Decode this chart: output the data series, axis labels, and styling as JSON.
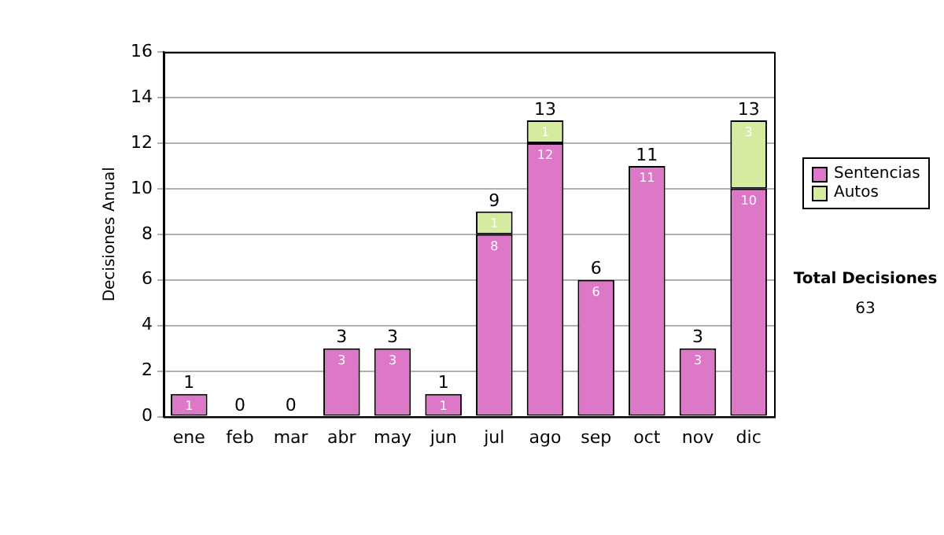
{
  "chart_data": {
    "type": "bar",
    "stacked": true,
    "ylabel": "Decisiones Anual",
    "categories": [
      "ene",
      "feb",
      "mar",
      "abr",
      "may",
      "jun",
      "jul",
      "ago",
      "sep",
      "oct",
      "nov",
      "dic"
    ],
    "series": [
      {
        "name": "Sentencias",
        "color": "#dd77c7",
        "values": [
          1,
          0,
          0,
          3,
          3,
          1,
          8,
          12,
          6,
          11,
          3,
          10
        ],
        "value_labels": [
          "1",
          null,
          null,
          "3",
          "3",
          "1",
          "8",
          "12",
          "6",
          "11",
          "3",
          "10"
        ]
      },
      {
        "name": "Autos",
        "color": "#d4eba0",
        "values": [
          0,
          0,
          0,
          0,
          0,
          0,
          1,
          1,
          0,
          0,
          0,
          3
        ],
        "value_labels": [
          null,
          null,
          null,
          null,
          null,
          null,
          "1",
          "1",
          null,
          null,
          null,
          "3"
        ]
      }
    ],
    "totals": [
      "1",
      "0",
      "0",
      "3",
      "3",
      "1",
      "9",
      "13",
      "6",
      "11",
      "3",
      "13"
    ],
    "ylim": [
      0,
      16
    ],
    "yticks": [
      0,
      2,
      4,
      6,
      8,
      10,
      12,
      14,
      16
    ],
    "grid": "y",
    "legend": "right",
    "annotations": [
      "Total Decisiones",
      "63"
    ]
  }
}
